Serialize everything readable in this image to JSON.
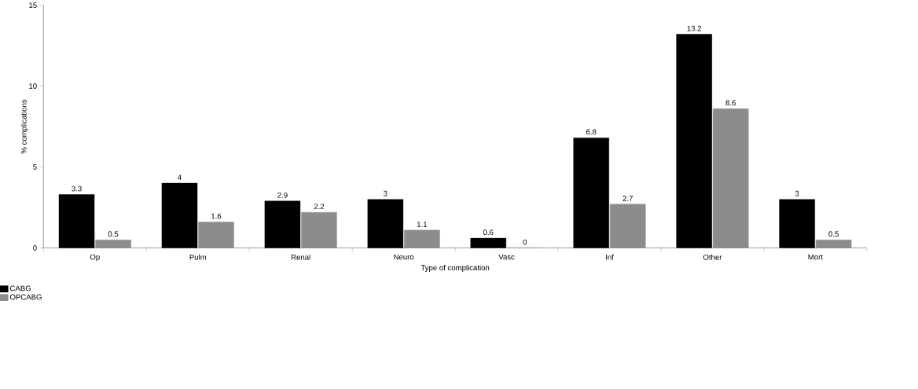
{
  "chart_data": {
    "type": "bar",
    "xlabel": "Type of complication",
    "ylabel": "% complications",
    "categories": [
      "Op",
      "Pulm",
      "Renal",
      "Neuro",
      "Vasc",
      "Inf",
      "Other",
      "Mort"
    ],
    "series": [
      {
        "name": "CABG",
        "color": "#000000",
        "values": [
          3.3,
          4,
          2.9,
          3,
          0.6,
          6.8,
          13.2,
          3
        ]
      },
      {
        "name": "OPCABG",
        "color": "#8c8c8c",
        "values": [
          0.5,
          1.6,
          2.2,
          1.1,
          0,
          2.7,
          8.6,
          0.5
        ]
      }
    ],
    "ylim": [
      0,
      15
    ],
    "yticks": [
      0,
      5,
      10,
      15
    ],
    "data_labels": true,
    "legend": "bottom left",
    "grid": false
  }
}
